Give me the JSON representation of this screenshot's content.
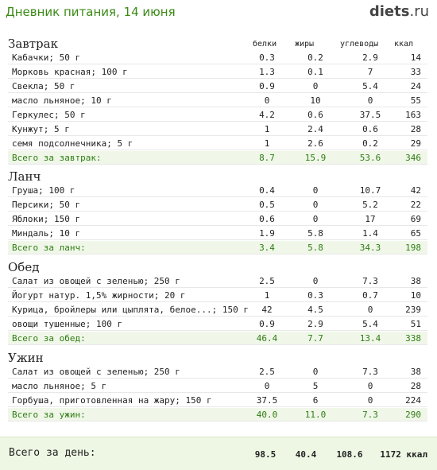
{
  "header": {
    "title": "Дневник питания, 14 июня",
    "logo_main": "diets",
    "logo_tld": ".ru"
  },
  "columns": {
    "protein": "белки",
    "fat": "жиры",
    "carbs": "углеводы",
    "kcal": "ккал"
  },
  "meals": [
    {
      "title": "Завтрак",
      "items": [
        [
          "Кабачки; 50 г",
          "0.3",
          "0.2",
          "2.9",
          "14"
        ],
        [
          "Морковь красная; 100 г",
          "1.3",
          "0.1",
          "7",
          "33"
        ],
        [
          "Свекла; 50 г",
          "0.9",
          "0",
          "5.4",
          "24"
        ],
        [
          "масло льняное; 10 г",
          "0",
          "10",
          "0",
          "55"
        ],
        [
          "Геркулес; 50 г",
          "4.2",
          "0.6",
          "37.5",
          "163"
        ],
        [
          "Кунжут; 5 г",
          "1",
          "2.4",
          "0.6",
          "28"
        ],
        [
          "семя подсолнечника; 5 г",
          "1",
          "2.6",
          "0.2",
          "29"
        ]
      ],
      "total": [
        "Всего за завтрак:",
        "8.7",
        "15.9",
        "53.6",
        "346"
      ]
    },
    {
      "title": "Ланч",
      "items": [
        [
          "Груша; 100 г",
          "0.4",
          "0",
          "10.7",
          "42"
        ],
        [
          "Персики; 50 г",
          "0.5",
          "0",
          "5.2",
          "22"
        ],
        [
          "Яблоки; 150 г",
          "0.6",
          "0",
          "17",
          "69"
        ],
        [
          "Миндаль; 10 г",
          "1.9",
          "5.8",
          "1.4",
          "65"
        ]
      ],
      "total": [
        "Всего за ланч:",
        "3.4",
        "5.8",
        "34.3",
        "198"
      ]
    },
    {
      "title": "Обед",
      "items": [
        [
          "Салат из овощей с зеленью; 250 г",
          "2.5",
          "0",
          "7.3",
          "38"
        ],
        [
          "Йогурт натур. 1,5% жирности; 20 г",
          "1",
          "0.3",
          "0.7",
          "10"
        ],
        [
          "Курица, бройлеры или цыплята, белое...; 150 г",
          "42",
          "4.5",
          "0",
          "239"
        ],
        [
          "овощи тушенные; 100 г",
          "0.9",
          "2.9",
          "5.4",
          "51"
        ]
      ],
      "total": [
        "Всего за обед:",
        "46.4",
        "7.7",
        "13.4",
        "338"
      ]
    },
    {
      "title": "Ужин",
      "items": [
        [
          "Салат из овощей с зеленью; 250 г",
          "2.5",
          "0",
          "7.3",
          "38"
        ],
        [
          "масло льняное; 5 г",
          "0",
          "5",
          "0",
          "28"
        ],
        [
          "Горбуша, приготовленная на жару; 150 г",
          "37.5",
          "6",
          "0",
          "224"
        ]
      ],
      "total": [
        "Всего за ужин:",
        "40.0",
        "11.0",
        "7.3",
        "290"
      ]
    }
  ],
  "day_total": {
    "label": "Всего за день:",
    "protein": "98.5",
    "fat": "40.4",
    "carbs": "108.6",
    "kcal": "1172 ккал"
  },
  "colors": {
    "title_green": "#3a8a14",
    "total_green": "#2e7d12",
    "total_bg": "#f0f7e9"
  }
}
